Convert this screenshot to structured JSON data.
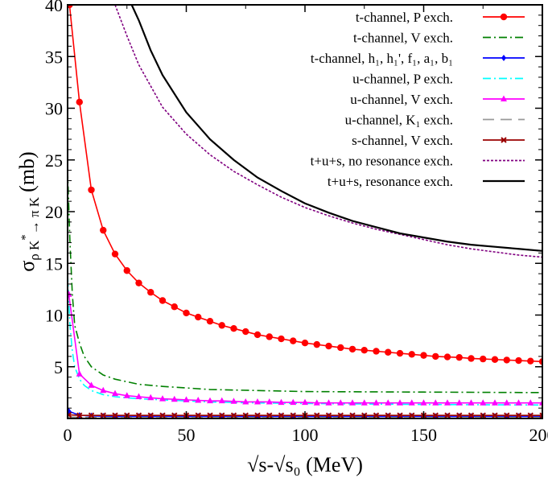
{
  "chart_data": {
    "type": "line",
    "xlabel": "√s-√s₀ (MeV)",
    "ylabel": "σρK*→πK (mb)",
    "ylabel_parts": {
      "main": "σ",
      "sub": "ρ K",
      "sup": "*",
      "sub2": "→ π K",
      "unit": "(mb)"
    },
    "xlim": [
      0,
      200
    ],
    "ylim": [
      0,
      40
    ],
    "x_ticks": [
      0,
      50,
      100,
      150,
      200
    ],
    "y_ticks": [
      5,
      10,
      15,
      20,
      25,
      30,
      35,
      40
    ],
    "grid": false,
    "legend_position": "top-right",
    "series": [
      {
        "name": "t-channel, P exch.",
        "color": "#ff0000",
        "dash": "solid",
        "marker": "circle",
        "x": [
          0.8,
          5,
          10,
          15,
          20,
          25,
          30,
          35,
          40,
          45,
          50,
          55,
          60,
          65,
          70,
          75,
          80,
          85,
          90,
          95,
          100,
          105,
          110,
          115,
          120,
          125,
          130,
          135,
          140,
          145,
          150,
          155,
          160,
          165,
          170,
          175,
          180,
          185,
          190,
          195,
          200
        ],
        "y": [
          40,
          30.6,
          22.1,
          18.2,
          15.9,
          14.3,
          13.1,
          12.2,
          11.4,
          10.8,
          10.2,
          9.8,
          9.4,
          9.0,
          8.7,
          8.4,
          8.1,
          7.9,
          7.7,
          7.5,
          7.3,
          7.15,
          7.0,
          6.85,
          6.7,
          6.6,
          6.5,
          6.4,
          6.3,
          6.2,
          6.1,
          6.0,
          5.95,
          5.9,
          5.8,
          5.75,
          5.7,
          5.65,
          5.6,
          5.55,
          5.5
        ]
      },
      {
        "name": "t-channel, V exch.",
        "color": "#008000",
        "dash": "dashdot",
        "marker": "none",
        "x": [
          0,
          1,
          2,
          3,
          5,
          7,
          10,
          15,
          20,
          30,
          40,
          60,
          80,
          100,
          150,
          200
        ],
        "y": [
          24,
          17,
          12,
          9,
          7.3,
          6.0,
          5.0,
          4.2,
          3.8,
          3.3,
          3.1,
          2.8,
          2.7,
          2.6,
          2.55,
          2.5
        ]
      },
      {
        "name": "t-channel, h₁, h₁', f₁, a₁, b₁",
        "color": "#0000ff",
        "dash": "solid",
        "marker": "diamond",
        "x": [
          0.5,
          5,
          10,
          15,
          20,
          25,
          30,
          35,
          40,
          45,
          50,
          55,
          60,
          65,
          70,
          75,
          80,
          85,
          90,
          95,
          100,
          105,
          110,
          115,
          120,
          125,
          130,
          135,
          140,
          145,
          150,
          155,
          160,
          165,
          170,
          175,
          180,
          185,
          190,
          195,
          200
        ],
        "y": [
          0.7,
          0.3,
          0.25,
          0.22,
          0.2,
          0.2,
          0.2,
          0.2,
          0.2,
          0.2,
          0.2,
          0.2,
          0.2,
          0.2,
          0.2,
          0.2,
          0.2,
          0.2,
          0.2,
          0.2,
          0.2,
          0.2,
          0.2,
          0.2,
          0.2,
          0.2,
          0.2,
          0.2,
          0.2,
          0.2,
          0.2,
          0.2,
          0.2,
          0.2,
          0.2,
          0.2,
          0.2,
          0.2,
          0.2,
          0.2,
          0.2
        ]
      },
      {
        "name": "u-channel, P exch.",
        "color": "#00ffff",
        "dash": "dashdot",
        "marker": "none",
        "x": [
          0,
          1,
          2,
          3,
          5,
          7,
          10,
          15,
          20,
          30,
          40,
          60,
          80,
          100,
          150,
          200
        ],
        "y": [
          14,
          9,
          6.5,
          5,
          3.8,
          3.2,
          2.7,
          2.3,
          2.1,
          1.9,
          1.8,
          1.6,
          1.5,
          1.45,
          1.35,
          1.3
        ]
      },
      {
        "name": "u-channel, V exch.",
        "color": "#ff00ff",
        "dash": "solid",
        "marker": "triangle",
        "x": [
          0.5,
          5,
          10,
          15,
          20,
          25,
          30,
          35,
          40,
          45,
          50,
          55,
          60,
          65,
          70,
          75,
          80,
          85,
          90,
          95,
          100,
          105,
          110,
          115,
          120,
          125,
          130,
          135,
          140,
          145,
          150,
          155,
          160,
          165,
          170,
          175,
          180,
          185,
          190,
          195,
          200
        ],
        "y": [
          12,
          4.3,
          3.2,
          2.7,
          2.4,
          2.2,
          2.1,
          2.0,
          1.9,
          1.85,
          1.8,
          1.75,
          1.7,
          1.7,
          1.65,
          1.6,
          1.6,
          1.6,
          1.55,
          1.55,
          1.55,
          1.5,
          1.5,
          1.5,
          1.5,
          1.5,
          1.5,
          1.5,
          1.5,
          1.5,
          1.5,
          1.5,
          1.5,
          1.5,
          1.5,
          1.5,
          1.5,
          1.5,
          1.5,
          1.5,
          1.5
        ]
      },
      {
        "name": "u-channel, K₁ exch.",
        "color": "#999999",
        "dash": "longdash",
        "marker": "none",
        "x": [
          0,
          5,
          10,
          20,
          50,
          100,
          150,
          200
        ],
        "y": [
          0.15,
          0.12,
          0.11,
          0.1,
          0.1,
          0.1,
          0.1,
          0.1
        ]
      },
      {
        "name": "s-channel, V exch.",
        "color": "#990000",
        "dash": "solid",
        "marker": "x",
        "x": [
          0.5,
          5,
          10,
          15,
          20,
          25,
          30,
          35,
          40,
          45,
          50,
          55,
          60,
          65,
          70,
          75,
          80,
          85,
          90,
          95,
          100,
          105,
          110,
          115,
          120,
          125,
          130,
          135,
          140,
          145,
          150,
          155,
          160,
          165,
          170,
          175,
          180,
          185,
          190,
          195,
          200
        ],
        "y": [
          0.35,
          0.3,
          0.3,
          0.3,
          0.3,
          0.3,
          0.3,
          0.3,
          0.3,
          0.3,
          0.3,
          0.3,
          0.3,
          0.3,
          0.3,
          0.3,
          0.3,
          0.3,
          0.3,
          0.3,
          0.3,
          0.3,
          0.3,
          0.3,
          0.3,
          0.3,
          0.3,
          0.3,
          0.3,
          0.3,
          0.3,
          0.3,
          0.3,
          0.3,
          0.3,
          0.3,
          0.3,
          0.3,
          0.3,
          0.3,
          0.3
        ]
      },
      {
        "name": "t+u+s, no resonance exch.",
        "color": "#800080",
        "dash": "dotted",
        "marker": "none",
        "x": [
          20,
          25,
          30,
          40,
          50,
          60,
          70,
          80,
          90,
          100,
          110,
          120,
          130,
          140,
          150,
          160,
          170,
          180,
          190,
          200
        ],
        "y": [
          40,
          37,
          34.2,
          30.1,
          27.5,
          25.5,
          23.9,
          22.6,
          21.4,
          20.4,
          19.6,
          18.9,
          18.3,
          17.8,
          17.3,
          16.8,
          16.4,
          16.1,
          15.8,
          15.6
        ]
      },
      {
        "name": "t+u+s, resonance exch.",
        "color": "#000000",
        "dash": "solid",
        "marker": "none",
        "x": [
          27,
          30,
          35,
          40,
          50,
          60,
          70,
          80,
          90,
          100,
          110,
          120,
          130,
          140,
          150,
          160,
          170,
          180,
          190,
          200
        ],
        "y": [
          40,
          38.5,
          35.6,
          33.2,
          29.6,
          27.0,
          25.0,
          23.3,
          22.0,
          20.8,
          19.9,
          19.1,
          18.5,
          17.9,
          17.5,
          17.1,
          16.8,
          16.6,
          16.4,
          16.2
        ]
      }
    ]
  }
}
